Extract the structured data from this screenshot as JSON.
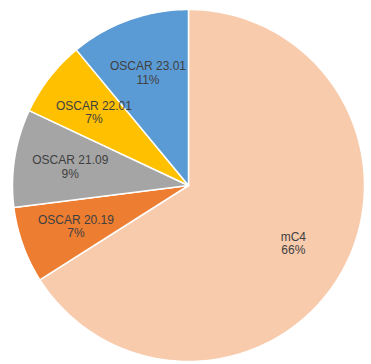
{
  "chart_data": {
    "type": "pie",
    "categories": [
      "mC4",
      "OSCAR 20.19",
      "OSCAR 21.09",
      "OSCAR 22.01",
      "OSCAR 23.01"
    ],
    "values": [
      66,
      7,
      9,
      7,
      11
    ],
    "value_labels": [
      "66%",
      "7%",
      "9%",
      "7%",
      "11%"
    ],
    "colors": [
      "#f8cbad",
      "#ed7d31",
      "#a5a5a5",
      "#ffc000",
      "#5b9bd5"
    ],
    "data_labels": true
  }
}
